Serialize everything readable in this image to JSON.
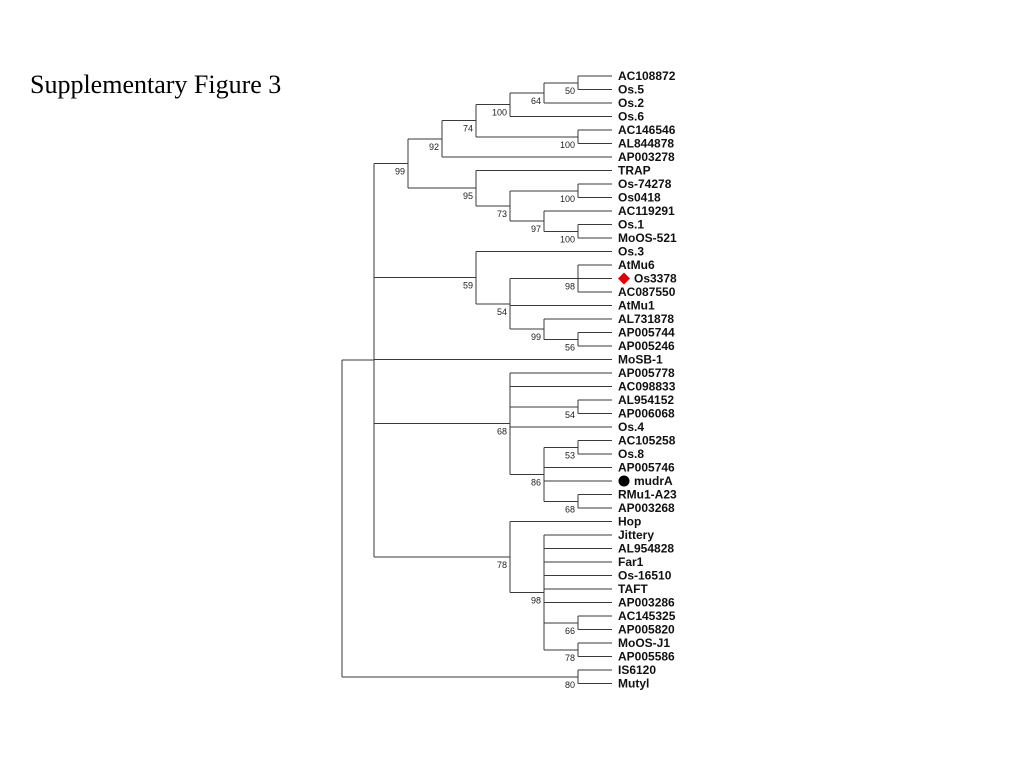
{
  "slide": {
    "title": "Supplementary Figure 3"
  },
  "tree": {
    "name": "",
    "bootstrap": null,
    "children": [
      {
        "name": "",
        "bootstrap": null,
        "children": [
          {
            "name": "",
            "bootstrap": "99",
            "children": [
              {
                "name": "",
                "bootstrap": "92",
                "children": [
                  {
                    "name": "",
                    "bootstrap": "74",
                    "children": [
                      {
                        "name": "",
                        "bootstrap": "100",
                        "children": [
                          {
                            "name": "",
                            "bootstrap": "64",
                            "children": [
                              {
                                "name": "",
                                "bootstrap": "50",
                                "children": [
                                  {
                                    "name": "AC108872"
                                  },
                                  {
                                    "name": "Os.5"
                                  }
                                ]
                              },
                              {
                                "name": "Os.2"
                              }
                            ]
                          },
                          {
                            "name": "Os.6"
                          }
                        ]
                      },
                      {
                        "name": "",
                        "bootstrap": "100",
                        "children": [
                          {
                            "name": "AC146546"
                          },
                          {
                            "name": "AL844878"
                          }
                        ]
                      }
                    ]
                  },
                  {
                    "name": "AP003278"
                  }
                ]
              },
              {
                "name": "",
                "bootstrap": "95",
                "children": [
                  {
                    "name": "TRAP"
                  },
                  {
                    "name": "",
                    "bootstrap": "73",
                    "children": [
                      {
                        "name": "",
                        "bootstrap": "100",
                        "children": [
                          {
                            "name": "Os-74278"
                          },
                          {
                            "name": "Os0418"
                          }
                        ]
                      },
                      {
                        "name": "",
                        "bootstrap": "97",
                        "children": [
                          {
                            "name": "AC119291"
                          },
                          {
                            "name": "",
                            "bootstrap": "100",
                            "children": [
                              {
                                "name": "Os.1"
                              },
                              {
                                "name": "MoOS-521"
                              }
                            ]
                          }
                        ]
                      }
                    ]
                  }
                ]
              }
            ]
          },
          {
            "name": "",
            "bootstrap": "59",
            "children": [
              {
                "name": "Os.3"
              },
              {
                "name": "",
                "bootstrap": "54",
                "children": [
                  {
                    "name": "",
                    "bootstrap": "98",
                    "children": [
                      {
                        "name": "AtMu6"
                      },
                      {
                        "name": "Os3378",
                        "marker": "diamond",
                        "marker_color": "#e60000"
                      },
                      {
                        "name": "AC087550"
                      }
                    ]
                  },
                  {
                    "name": "AtMu1"
                  },
                  {
                    "name": "",
                    "bootstrap": "99",
                    "children": [
                      {
                        "name": "AL731878"
                      },
                      {
                        "name": "",
                        "bootstrap": "56",
                        "children": [
                          {
                            "name": "AP005744"
                          },
                          {
                            "name": "AP005246"
                          }
                        ]
                      }
                    ]
                  }
                ]
              }
            ]
          },
          {
            "name": "MoSB-1"
          },
          {
            "name": "",
            "bootstrap": "68",
            "children": [
              {
                "name": "AP005778"
              },
              {
                "name": "AC098833"
              },
              {
                "name": "",
                "bootstrap": "54",
                "children": [
                  {
                    "name": "AL954152"
                  },
                  {
                    "name": "AP006068"
                  }
                ]
              },
              {
                "name": "Os.4"
              },
              {
                "name": "",
                "bootstrap": "86",
                "children": [
                  {
                    "name": "",
                    "bootstrap": "53",
                    "children": [
                      {
                        "name": "AC105258"
                      },
                      {
                        "name": "Os.8"
                      }
                    ]
                  },
                  {
                    "name": "AP005746"
                  },
                  {
                    "name": "mudrA",
                    "marker": "circle",
                    "marker_color": "#000000"
                  },
                  {
                    "name": "",
                    "bootstrap": "68",
                    "children": [
                      {
                        "name": "RMu1-A23"
                      },
                      {
                        "name": "AP003268"
                      }
                    ]
                  }
                ]
              }
            ]
          },
          {
            "name": "",
            "bootstrap": "78",
            "children": [
              {
                "name": "Hop"
              },
              {
                "name": "",
                "bootstrap": "98",
                "children": [
                  {
                    "name": "Jittery"
                  },
                  {
                    "name": "AL954828"
                  },
                  {
                    "name": "Far1"
                  },
                  {
                    "name": "Os-16510"
                  },
                  {
                    "name": "TAFT"
                  },
                  {
                    "name": "AP003286"
                  },
                  {
                    "name": "",
                    "bootstrap": "66",
                    "children": [
                      {
                        "name": "AC145325"
                      },
                      {
                        "name": "AP005820"
                      }
                    ]
                  },
                  {
                    "name": "",
                    "bootstrap": "78",
                    "children": [
                      {
                        "name": "MoOS-J1"
                      },
                      {
                        "name": "AP005586"
                      }
                    ]
                  }
                ]
              }
            ]
          }
        ]
      },
      {
        "name": "",
        "bootstrap": "80",
        "children": [
          {
            "name": "IS6120"
          },
          {
            "name": "Mutyl"
          }
        ]
      }
    ]
  }
}
